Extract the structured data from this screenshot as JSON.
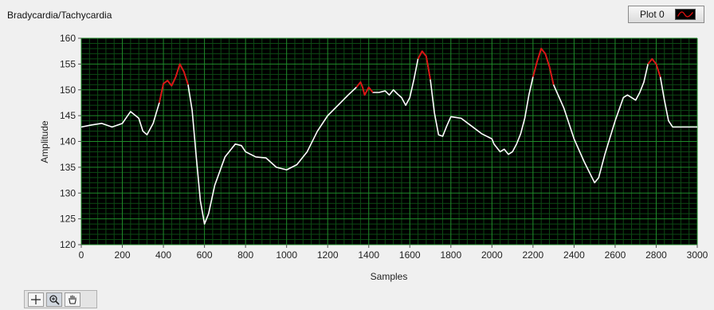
{
  "graph": {
    "title": "Bradycardia/Tachycardia",
    "legend": {
      "plot_name": "Plot 0"
    },
    "colors": {
      "background": "#000000",
      "major_grid": "#1f8a2a",
      "minor_grid": "#0d4a14",
      "trace": "#ffffff",
      "highlight": "#e01010"
    }
  },
  "palette": {
    "tools": [
      {
        "name": "cursor-move-tool",
        "icon": "crosshair-icon"
      },
      {
        "name": "zoom-tool",
        "icon": "magnifier-icon"
      },
      {
        "name": "pan-tool",
        "icon": "hand-icon"
      }
    ]
  },
  "chart_data": {
    "type": "line",
    "xlabel": "Samples",
    "ylabel": "Amplitude",
    "xlim": [
      0,
      3000
    ],
    "ylim": [
      120,
      160
    ],
    "x_ticks": [
      "0",
      "200",
      "400",
      "600",
      "800",
      "1000",
      "1200",
      "1400",
      "1600",
      "1800",
      "2000",
      "2200",
      "2400",
      "2600",
      "2800",
      "3000"
    ],
    "y_ticks": [
      "120",
      "125",
      "130",
      "135",
      "140",
      "145",
      "150",
      "155",
      "160"
    ],
    "grid": true,
    "series": [
      {
        "x": [
          0,
          50,
          100,
          150,
          200,
          240,
          280,
          300,
          320,
          350,
          380,
          400,
          420,
          440,
          460,
          480,
          500,
          520,
          540,
          560,
          580,
          600,
          620,
          650,
          700,
          750,
          780,
          800,
          850,
          900,
          950,
          1000,
          1050,
          1100,
          1150,
          1200,
          1250,
          1300,
          1340,
          1360,
          1370,
          1380,
          1400,
          1420,
          1450,
          1480,
          1500,
          1520,
          1540,
          1560,
          1580,
          1600,
          1620,
          1640,
          1660,
          1680,
          1700,
          1720,
          1740,
          1760,
          1780,
          1800,
          1850,
          1900,
          1950,
          2000,
          2010,
          2020,
          2030,
          2040,
          2060,
          2080,
          2100,
          2120,
          2140,
          2160,
          2180,
          2200,
          2220,
          2240,
          2260,
          2280,
          2300,
          2350,
          2400,
          2450,
          2500,
          2520,
          2550,
          2600,
          2640,
          2660,
          2700,
          2720,
          2740,
          2760,
          2780,
          2800,
          2820,
          2840,
          2860,
          2880,
          2900,
          2950,
          3000
        ],
        "y": [
          142.8,
          143.2,
          143.5,
          142.8,
          143.5,
          145.8,
          144.5,
          142.0,
          141.3,
          143.5,
          147.5,
          151.2,
          151.8,
          150.8,
          152.5,
          155.0,
          153.5,
          151.0,
          146.0,
          137.0,
          128.5,
          124.0,
          126.0,
          131.5,
          137.0,
          139.5,
          139.2,
          138.0,
          137.0,
          136.8,
          135.0,
          134.5,
          135.5,
          138.0,
          142.0,
          145.0,
          147.0,
          149.0,
          150.5,
          151.5,
          150.5,
          149.0,
          150.5,
          149.5,
          149.5,
          149.8,
          149.0,
          150.0,
          149.2,
          148.5,
          147.0,
          148.5,
          152.0,
          156.0,
          157.5,
          156.5,
          152.0,
          145.5,
          141.3,
          141.0,
          143.0,
          144.8,
          144.5,
          143.0,
          141.5,
          140.5,
          139.5,
          139.0,
          138.5,
          138.0,
          138.5,
          137.5,
          138.0,
          139.5,
          141.5,
          144.5,
          149.0,
          152.5,
          155.5,
          158.0,
          157.0,
          154.5,
          151.0,
          146.5,
          140.5,
          136.0,
          132.0,
          133.0,
          137.5,
          144.0,
          148.5,
          149.0,
          148.0,
          149.5,
          151.5,
          155.0,
          156.0,
          155.0,
          152.5,
          148.0,
          144.0,
          142.8,
          142.8,
          142.8,
          142.8
        ],
        "highlight_ranges": [
          [
            380,
            520
          ],
          [
            1340,
            1430
          ],
          [
            1630,
            1700
          ],
          [
            2200,
            2310
          ],
          [
            2760,
            2830
          ]
        ]
      }
    ]
  }
}
